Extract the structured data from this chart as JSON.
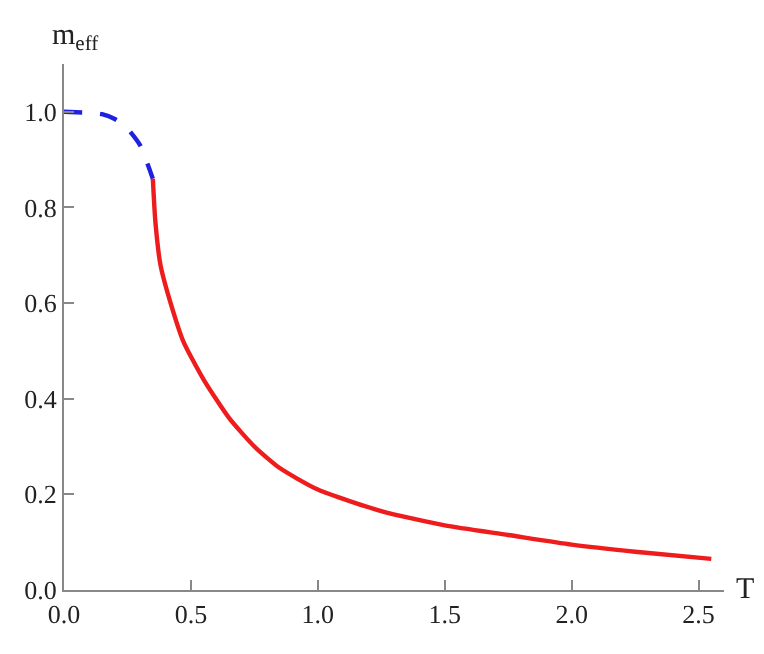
{
  "chart_data": {
    "type": "line",
    "xlabel": "T",
    "ylabel": "m$_{eff}$",
    "xlim": [
      0,
      2.6
    ],
    "ylim": [
      0,
      1.1
    ],
    "xticks": [
      {
        "value": 0,
        "label": "0.0"
      },
      {
        "value": 0.5,
        "label": "0.5"
      },
      {
        "value": 1,
        "label": "1.0"
      },
      {
        "value": 1.5,
        "label": "1.5"
      },
      {
        "value": 2,
        "label": "2.0"
      },
      {
        "value": 2.5,
        "label": "2.5"
      }
    ],
    "yticks": [
      {
        "value": 0,
        "label": "0.0"
      },
      {
        "value": 0.2,
        "label": "0.2"
      },
      {
        "value": 0.4,
        "label": "0.4"
      },
      {
        "value": 0.6,
        "label": "0.6"
      },
      {
        "value": 0.8,
        "label": "0.8"
      },
      {
        "value": 1,
        "label": "1.0"
      }
    ],
    "grid": false,
    "marker": "none",
    "series": [
      {
        "color": "#2020e0",
        "line_style": "dashed",
        "x": [
          0,
          0.1,
          0.15,
          0.2,
          0.25,
          0.3,
          0.33,
          0.35
        ],
        "values": [
          1.0,
          0.998,
          0.995,
          0.985,
          0.965,
          0.93,
          0.89,
          0.86
        ]
      },
      {
        "color": "#ee1c1c",
        "line_style": "solid",
        "x": [
          0.35,
          0.36,
          0.38,
          0.42,
          0.47,
          0.55,
          0.65,
          0.75,
          0.85,
          1.0,
          1.25,
          1.5,
          1.75,
          2.0,
          2.25,
          2.55
        ],
        "values": [
          0.86,
          0.77,
          0.68,
          0.6,
          0.52,
          0.44,
          0.36,
          0.3,
          0.255,
          0.21,
          0.165,
          0.135,
          0.115,
          0.095,
          0.08,
          0.065
        ]
      }
    ]
  }
}
